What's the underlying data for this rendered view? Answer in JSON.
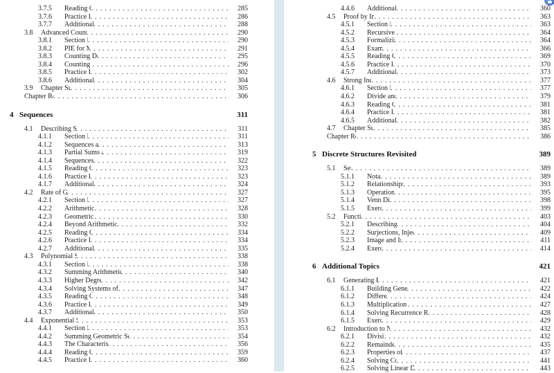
{
  "colors": {
    "page_bg": "#ffffff",
    "gap_band": "#dce9ed",
    "text": "#1f1f1f",
    "badge_blue": "#3f74c8"
  },
  "icons": {
    "badge": "notification-badge-icon"
  },
  "pages": {
    "left": {
      "entries": [
        {
          "type": "subsection",
          "num": "3.7.5",
          "label": "Reading Questions",
          "page": "285"
        },
        {
          "type": "subsection",
          "num": "3.7.6",
          "label": "Practice Problems",
          "page": "286"
        },
        {
          "type": "subsection",
          "num": "3.7.7",
          "label": "Additional Exercises",
          "page": "288"
        },
        {
          "type": "section",
          "num": "3.8",
          "label": "Advanced Counting Using PIE",
          "page": "290"
        },
        {
          "type": "subsection",
          "num": "3.8.1",
          "label": "Section Preview",
          "page": "290"
        },
        {
          "type": "subsection",
          "num": "3.8.2",
          "label": "PIE for Multisets",
          "page": "291"
        },
        {
          "type": "subsection",
          "num": "3.8.3",
          "label": "Counting Derangements",
          "page": "295"
        },
        {
          "type": "subsection",
          "num": "3.8.4",
          "label": "Counting Functions",
          "page": "296"
        },
        {
          "type": "subsection",
          "num": "3.8.5",
          "label": "Practice Problems",
          "page": "302"
        },
        {
          "type": "subsection",
          "num": "3.8.6",
          "label": "Additional Exercises",
          "page": "304"
        },
        {
          "type": "section",
          "num": "3.9",
          "label": "Chapter Summary",
          "page": "305"
        },
        {
          "type": "review",
          "num": "",
          "label": "Chapter Review",
          "page": "306"
        },
        {
          "type": "chapter",
          "num": "4",
          "label": "Sequences",
          "page": "311"
        },
        {
          "type": "section",
          "num": "4.1",
          "label": "Describing Sequences",
          "page": "311"
        },
        {
          "type": "subsection",
          "num": "4.1.1",
          "label": "Section Preview",
          "page": "311"
        },
        {
          "type": "subsection",
          "num": "4.1.2",
          "label": "Sequences and Formulas",
          "page": "313"
        },
        {
          "type": "subsection",
          "num": "4.1.3",
          "label": "Partial Sums and Differences",
          "page": "319"
        },
        {
          "type": "subsection",
          "num": "4.1.4",
          "label": "Sequences in python",
          "page": "322"
        },
        {
          "type": "subsection",
          "num": "4.1.5",
          "label": "Reading Questions",
          "page": "323"
        },
        {
          "type": "subsection",
          "num": "4.1.6",
          "label": "Practice Problems",
          "page": "323"
        },
        {
          "type": "subsection",
          "num": "4.1.7",
          "label": "Additional Exercises",
          "page": "324"
        },
        {
          "type": "section",
          "num": "4.2",
          "label": "Rate of Growth",
          "page": "327"
        },
        {
          "type": "subsection",
          "num": "4.2.1",
          "label": "Section Preview",
          "page": "327"
        },
        {
          "type": "subsection",
          "num": "4.2.2",
          "label": "Arithmetic Sequences",
          "page": "328"
        },
        {
          "type": "subsection",
          "num": "4.2.3",
          "label": "Geometric Sequences",
          "page": "330"
        },
        {
          "type": "subsection",
          "num": "4.2.4",
          "label": "Beyond Arithmetic and Geometric Sequences",
          "page": "332"
        },
        {
          "type": "subsection",
          "num": "4.2.5",
          "label": "Reading Questions",
          "page": "334"
        },
        {
          "type": "subsection",
          "num": "4.2.6",
          "label": "Practice Problems",
          "page": "334"
        },
        {
          "type": "subsection",
          "num": "4.2.7",
          "label": "Additional Exercises",
          "page": "335"
        },
        {
          "type": "section",
          "num": "4.3",
          "label": "Polynomial Sequences",
          "page": "338"
        },
        {
          "type": "subsection",
          "num": "4.3.1",
          "label": "Section Preview",
          "page": "338"
        },
        {
          "type": "subsection",
          "num": "4.3.2",
          "label": "Summing Arithmetic Sequences: Reverse and Add",
          "page": "340"
        },
        {
          "type": "subsection",
          "num": "4.3.3",
          "label": "Higher Degree Polynomials",
          "page": "342"
        },
        {
          "type": "subsection",
          "num": "4.3.4",
          "label": "Solving Systems of Equations with Technology",
          "page": "347"
        },
        {
          "type": "subsection",
          "num": "4.3.5",
          "label": "Reading Questions",
          "page": "348"
        },
        {
          "type": "subsection",
          "num": "4.3.6",
          "label": "Practice Problems",
          "page": "349"
        },
        {
          "type": "subsection",
          "num": "4.3.7",
          "label": "Additional Exercises",
          "page": "350"
        },
        {
          "type": "section",
          "num": "4.4",
          "label": "Exponential Sequences",
          "page": "353"
        },
        {
          "type": "subsection",
          "num": "4.4.1",
          "label": "Section Preview",
          "page": "353"
        },
        {
          "type": "subsection",
          "num": "4.4.2",
          "label": "Summing Geometric Sequences: Multiply, Shift, and Subtract",
          "page": "354"
        },
        {
          "type": "subsection",
          "num": "4.4.3",
          "label": "The Characteristic Root Technique",
          "page": "356"
        },
        {
          "type": "subsection",
          "num": "4.4.4",
          "label": "Reading Questions",
          "page": "359"
        },
        {
          "type": "subsection",
          "num": "4.4.5",
          "label": "Practice Problems",
          "page": "360"
        }
      ]
    },
    "right": {
      "entries": [
        {
          "type": "subsection",
          "num": "4.4.6",
          "label": "Additional Exercises",
          "page": "360"
        },
        {
          "type": "section",
          "num": "4.5",
          "label": "Proof by Induction",
          "page": "363"
        },
        {
          "type": "subsection",
          "num": "4.5.1",
          "label": "Section Preview",
          "page": "363"
        },
        {
          "type": "subsection",
          "num": "4.5.2",
          "label": "Recursive Reasoning",
          "page": "364"
        },
        {
          "type": "subsection",
          "num": "4.5.3",
          "label": "Formalizing Proofs",
          "page": "364"
        },
        {
          "type": "subsection",
          "num": "4.5.4",
          "label": "Examples",
          "page": "366"
        },
        {
          "type": "subsection",
          "num": "4.5.5",
          "label": "Reading Questions",
          "page": "369"
        },
        {
          "type": "subsection",
          "num": "4.5.6",
          "label": "Practice Problems",
          "page": "370"
        },
        {
          "type": "subsection",
          "num": "4.5.7",
          "label": "Additional Exercises",
          "page": "373"
        },
        {
          "type": "section",
          "num": "4.6",
          "label": "Strong Induction",
          "page": "377"
        },
        {
          "type": "subsection",
          "num": "4.6.1",
          "label": "Section Preview",
          "page": "377"
        },
        {
          "type": "subsection",
          "num": "4.6.2",
          "label": "Divide and Conquer",
          "page": "379"
        },
        {
          "type": "subsection",
          "num": "4.6.3",
          "label": "Reading Questions",
          "page": "381"
        },
        {
          "type": "subsection",
          "num": "4.6.4",
          "label": "Practice Problems",
          "page": "381"
        },
        {
          "type": "subsection",
          "num": "4.6.5",
          "label": "Additional Exercises",
          "page": "382"
        },
        {
          "type": "section",
          "num": "4.7",
          "label": "Chapter Summary",
          "page": "385"
        },
        {
          "type": "review",
          "num": "",
          "label": "Chapter Review",
          "page": "386"
        },
        {
          "type": "chapter",
          "num": "5",
          "label": "Discrete Structures Revisited",
          "page": "389"
        },
        {
          "type": "section",
          "num": "5.1",
          "label": "Sets",
          "page": "389"
        },
        {
          "type": "subsection",
          "num": "5.1.1",
          "label": "Notation",
          "page": "389"
        },
        {
          "type": "subsection",
          "num": "5.1.2",
          "label": "Relationships between Sets",
          "page": "393"
        },
        {
          "type": "subsection",
          "num": "5.1.3",
          "label": "Operations on Sets",
          "page": "395"
        },
        {
          "type": "subsection",
          "num": "5.1.4",
          "label": "Venn Diagrams",
          "page": "398"
        },
        {
          "type": "subsection",
          "num": "5.1.5",
          "label": "Exercises",
          "page": "399"
        },
        {
          "type": "section",
          "num": "5.2",
          "label": "Functions",
          "page": "403"
        },
        {
          "type": "subsection",
          "num": "5.2.1",
          "label": "Describing Functions",
          "page": "404"
        },
        {
          "type": "subsection",
          "num": "5.2.2",
          "label": "Surjections, Injections, and Bijections",
          "page": "409"
        },
        {
          "type": "subsection",
          "num": "5.2.3",
          "label": "Image and Inverse Image",
          "page": "411"
        },
        {
          "type": "subsection",
          "num": "5.2.4",
          "label": "Exercises",
          "page": "414"
        },
        {
          "type": "chapter",
          "num": "6",
          "label": "Additional Topics",
          "page": "421"
        },
        {
          "type": "section",
          "num": "6.1",
          "label": "Generating Functions",
          "page": "421"
        },
        {
          "type": "subsection",
          "num": "6.1.1",
          "label": "Building Generating Functions",
          "page": "422"
        },
        {
          "type": "subsection",
          "num": "6.1.2",
          "label": "Differencing",
          "page": "424"
        },
        {
          "type": "subsection",
          "num": "6.1.3",
          "label": "Multiplication and Partial Sums",
          "page": "427"
        },
        {
          "type": "subsection",
          "num": "6.1.4",
          "label": "Solving Recurrence Relations with Generating Functions",
          "page": "428"
        },
        {
          "type": "subsection",
          "num": "6.1.5",
          "label": "Exercises",
          "page": "429"
        },
        {
          "type": "section",
          "num": "6.2",
          "label": "Introduction to Number Theory",
          "page": "432"
        },
        {
          "type": "subsection",
          "num": "6.2.1",
          "label": "Divisibility",
          "page": "432"
        },
        {
          "type": "subsection",
          "num": "6.2.2",
          "label": "Remainder Classes",
          "page": "435"
        },
        {
          "type": "subsection",
          "num": "6.2.3",
          "label": "Properties of Congruence",
          "page": "437"
        },
        {
          "type": "subsection",
          "num": "6.2.4",
          "label": "Solving Congruences",
          "page": "441"
        },
        {
          "type": "subsection",
          "num": "6.2.5",
          "label": "Solving Linear Diophantine Equations",
          "page": "443"
        }
      ]
    }
  }
}
